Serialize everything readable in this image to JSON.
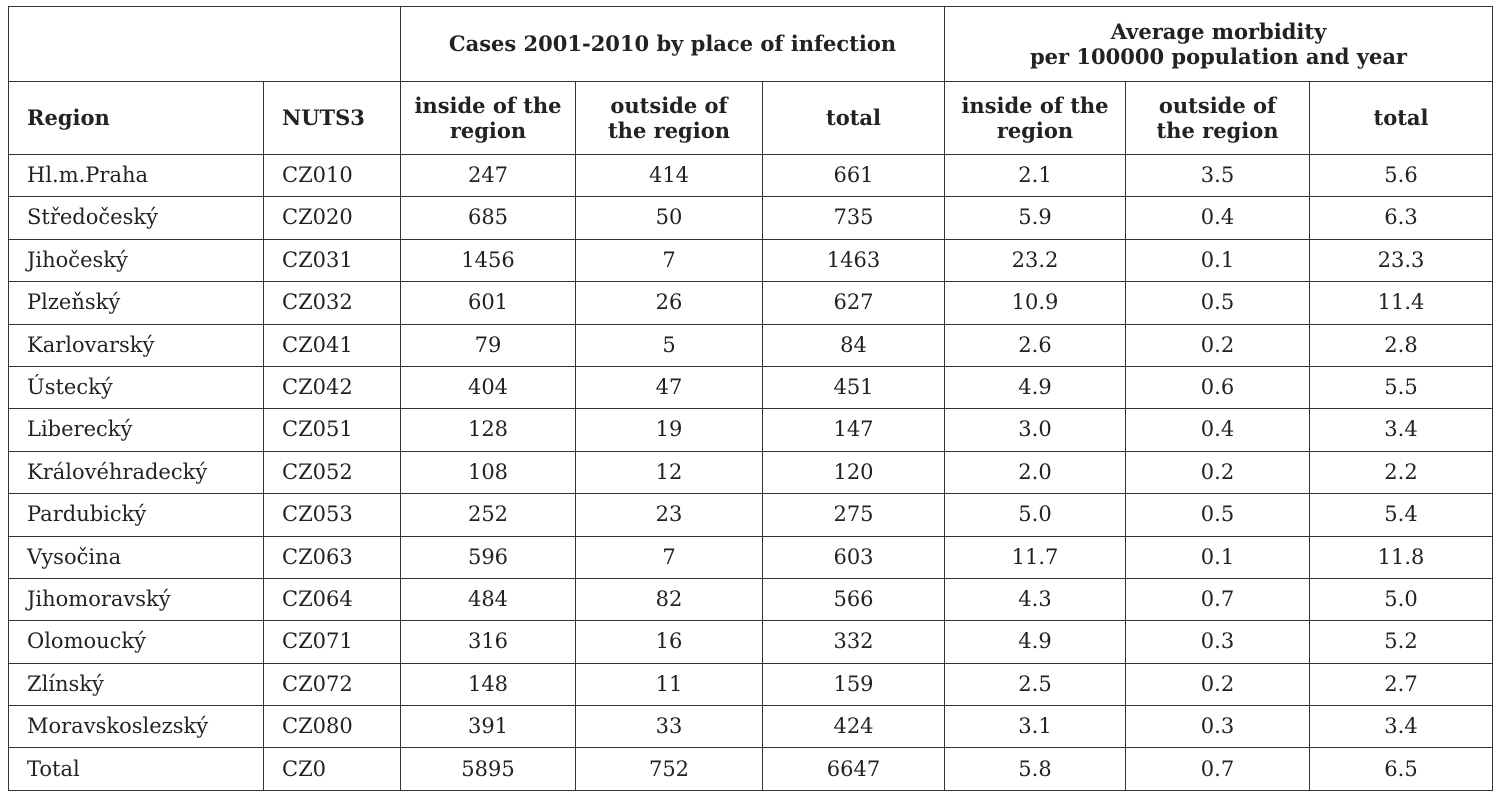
{
  "table": {
    "group_headers": {
      "cases": "Cases 2001-2010 by place of infection",
      "morbidity_line1": "Average morbidity",
      "morbidity_line2": "per 100000 population and year"
    },
    "columns": {
      "region": "Region",
      "nuts3": "NUTS3",
      "cases_inside_1": "inside of the",
      "cases_inside_2": "region",
      "cases_outside_1": "outside of",
      "cases_outside_2": "the region",
      "cases_total": "total",
      "morb_inside_1": "inside of the",
      "morb_inside_2": "region",
      "morb_outside_1": "outside of",
      "morb_outside_2": "the region",
      "morb_total": "total"
    },
    "rows": [
      [
        "Hl.m.Praha",
        "CZ010",
        "247",
        "414",
        "661",
        "2.1",
        "3.5",
        "5.6"
      ],
      [
        "Středočeský",
        "CZ020",
        "685",
        "50",
        "735",
        "5.9",
        "0.4",
        "6.3"
      ],
      [
        "Jihočeský",
        "CZ031",
        "1456",
        "7",
        "1463",
        "23.2",
        "0.1",
        "23.3"
      ],
      [
        "Plzeňský",
        "CZ032",
        "601",
        "26",
        "627",
        "10.9",
        "0.5",
        "11.4"
      ],
      [
        "Karlovarský",
        "CZ041",
        "79",
        "5",
        "84",
        "2.6",
        "0.2",
        "2.8"
      ],
      [
        "Ústecký",
        "CZ042",
        "404",
        "47",
        "451",
        "4.9",
        "0.6",
        "5.5"
      ],
      [
        "Liberecký",
        "CZ051",
        "128",
        "19",
        "147",
        "3.0",
        "0.4",
        "3.4"
      ],
      [
        "Královéhradecký",
        "CZ052",
        "108",
        "12",
        "120",
        "2.0",
        "0.2",
        "2.2"
      ],
      [
        "Pardubický",
        "CZ053",
        "252",
        "23",
        "275",
        "5.0",
        "0.5",
        "5.4"
      ],
      [
        "Vysočina",
        "CZ063",
        "596",
        "7",
        "603",
        "11.7",
        "0.1",
        "11.8"
      ],
      [
        "Jihomoravský",
        "CZ064",
        "484",
        "82",
        "566",
        "4.3",
        "0.7",
        "5.0"
      ],
      [
        "Olomoucký",
        "CZ071",
        "316",
        "16",
        "332",
        "4.9",
        "0.3",
        "5.2"
      ],
      [
        "Zlínský",
        "CZ072",
        "148",
        "11",
        "159",
        "2.5",
        "0.2",
        "2.7"
      ],
      [
        "Moravskoslezský",
        "CZ080",
        "391",
        "33",
        "424",
        "3.1",
        "0.3",
        "3.4"
      ],
      [
        "Total",
        "CZ0",
        "5895",
        "752",
        "6647",
        "5.8",
        "0.7",
        "6.5"
      ]
    ]
  }
}
